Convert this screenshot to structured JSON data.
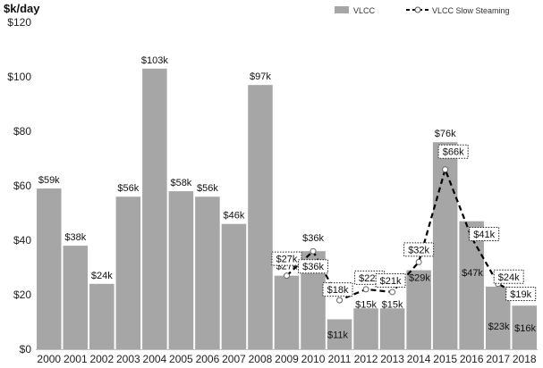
{
  "chart_data": {
    "type": "bar",
    "ylabel": "$k/day",
    "ylim": [
      0,
      120
    ],
    "yticks": [
      "$0",
      "$20",
      "$40",
      "$60",
      "$80",
      "$100",
      "$120"
    ],
    "categories": [
      "2000",
      "2001",
      "2002",
      "2003",
      "2004",
      "2005",
      "2006",
      "2007",
      "2008",
      "2009",
      "2010",
      "2011",
      "2012",
      "2013",
      "2014",
      "2015",
      "2016",
      "2017",
      "2018"
    ],
    "grid": false,
    "legend_position": "top-right",
    "series": [
      {
        "name": "VLCC",
        "type": "bar",
        "color": "#a6a6a6",
        "values": [
          59,
          38,
          24,
          56,
          103,
          58,
          56,
          46,
          97,
          27,
          36,
          11,
          15,
          15,
          29,
          76,
          47,
          23,
          16
        ],
        "labels": [
          "$59k",
          "$38k",
          "$24k",
          "$56k",
          "$103k",
          "$58k",
          "$56k",
          "$46k",
          "$97k",
          "$27k",
          "$36k",
          "$11k",
          "$15k",
          "$15k",
          "$29k",
          "$76k",
          "$47k",
          "$23k",
          "$16k"
        ]
      },
      {
        "name": "VLCC Slow Steaming",
        "type": "line",
        "style": "dashed",
        "color": "#000000",
        "x": [
          "2009",
          "2010",
          "2011",
          "2012",
          "2013",
          "2014",
          "2015",
          "2016",
          "2017",
          "2018"
        ],
        "values": [
          27,
          36,
          18,
          22,
          21,
          32,
          66,
          41,
          24,
          19
        ],
        "labels": [
          "$27k",
          "$36k",
          "$18k",
          "$22k",
          "$21k",
          "$32k",
          "$66k",
          "$41k",
          "$24k",
          "$19k"
        ]
      }
    ]
  }
}
